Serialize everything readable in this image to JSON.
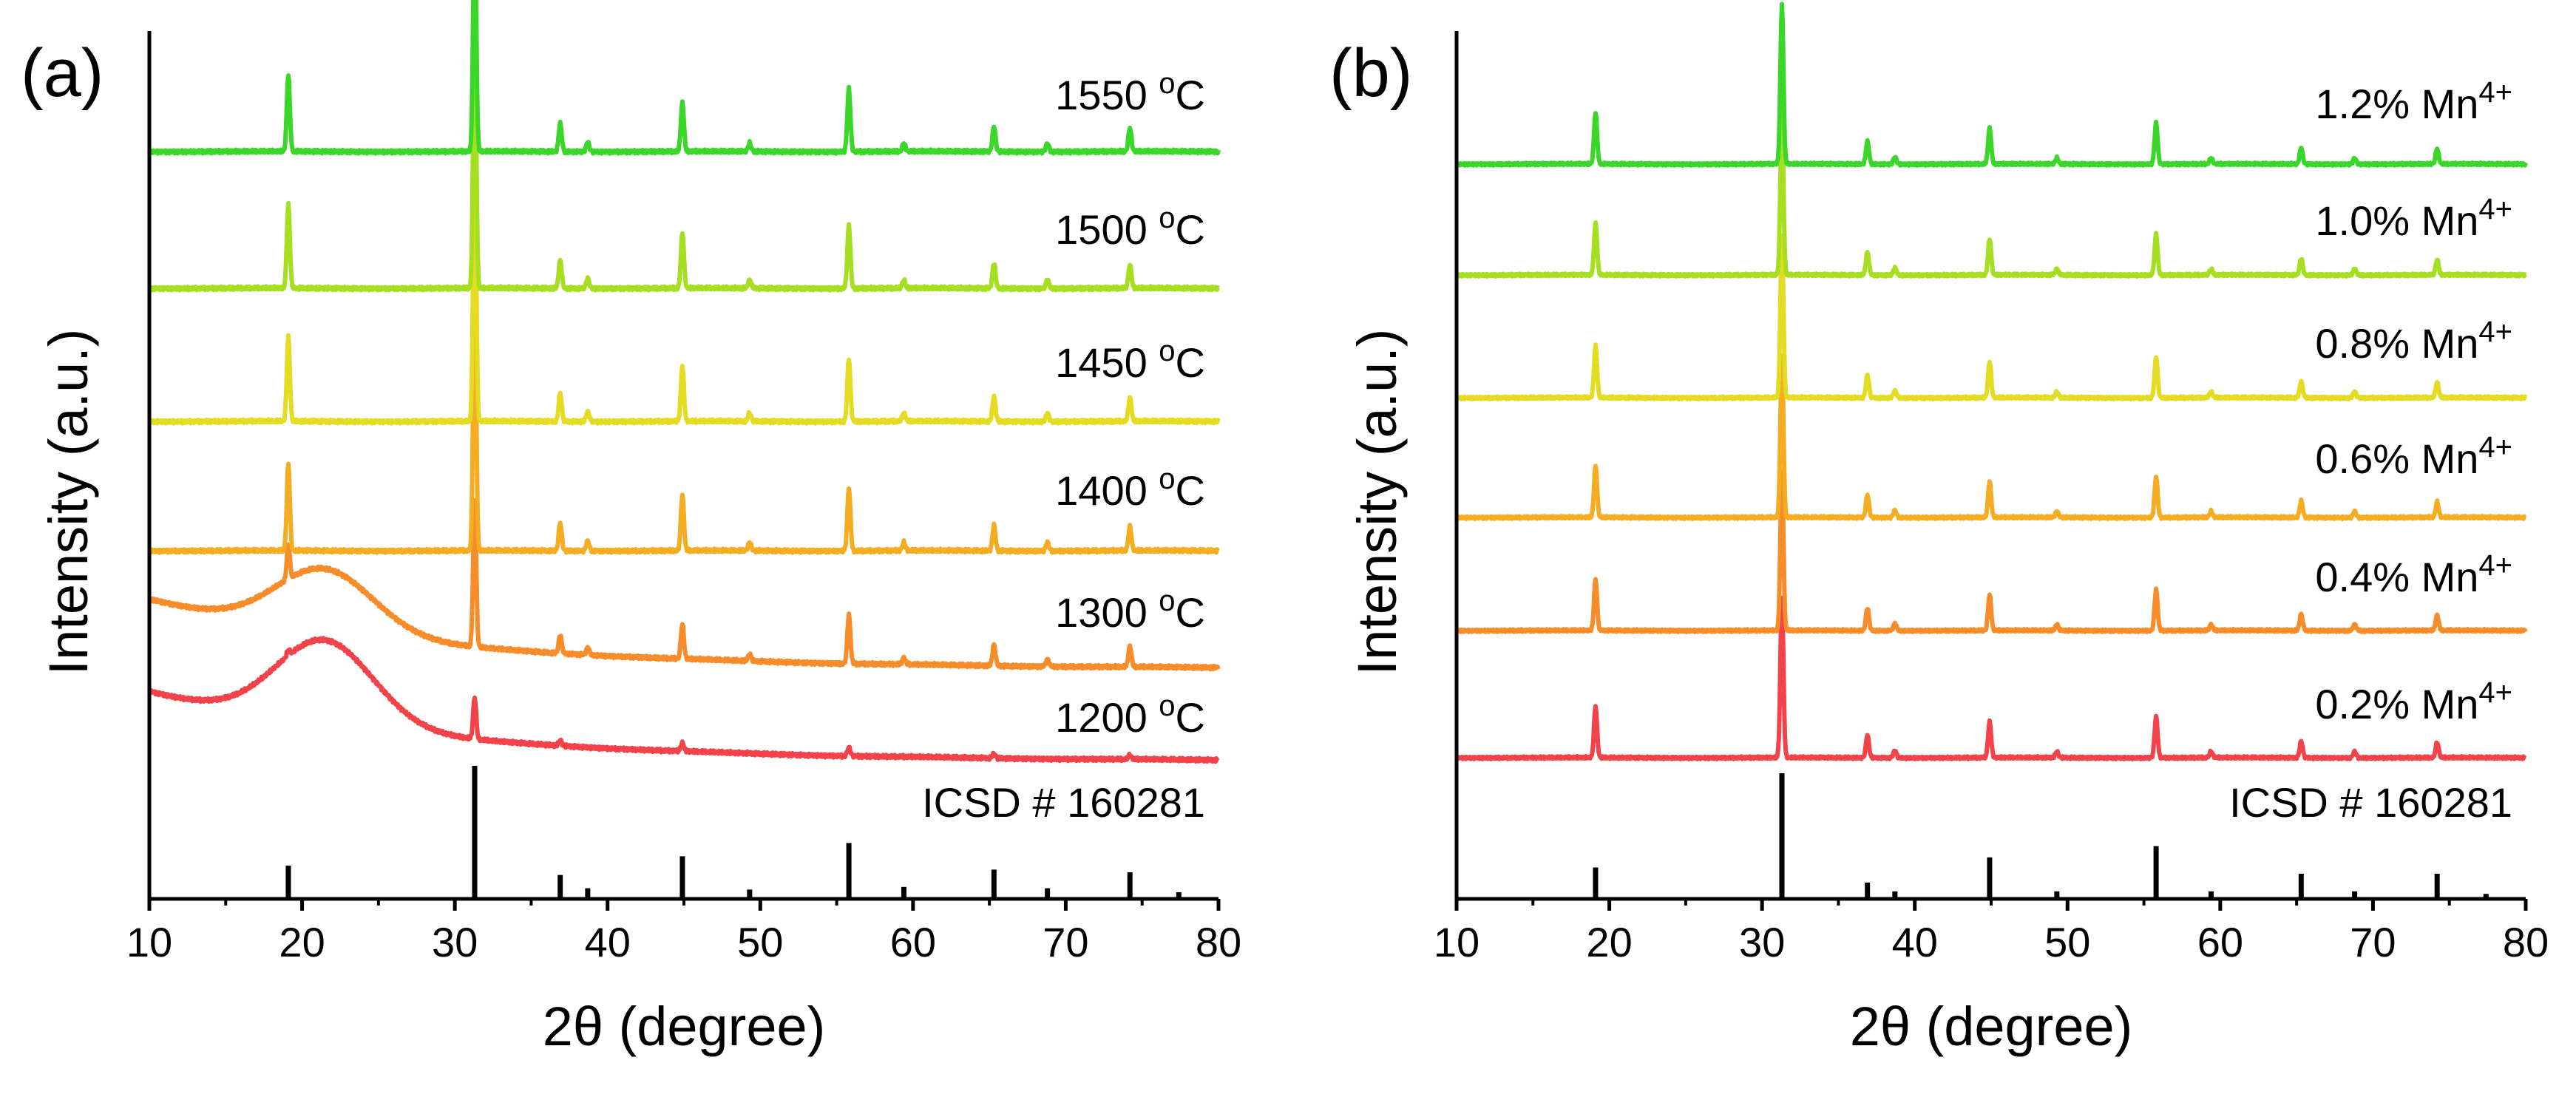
{
  "chart_data": [
    {
      "type": "line",
      "panel_label": "(a)",
      "xlabel": "2θ (degree)",
      "ylabel": "Intensity (a.u.)",
      "xlim": [
        10,
        80
      ],
      "x_ticks": [
        10,
        20,
        30,
        40,
        50,
        60,
        70,
        80
      ],
      "y_ticks": [],
      "grid": false,
      "reference": {
        "label": "ICSD # 160281",
        "sticks": [
          [
            19.1,
            0.25
          ],
          [
            31.3,
            1.0
          ],
          [
            36.9,
            0.18
          ],
          [
            38.7,
            0.08
          ],
          [
            44.9,
            0.32
          ],
          [
            49.3,
            0.07
          ],
          [
            55.8,
            0.42
          ],
          [
            59.4,
            0.09
          ],
          [
            65.3,
            0.22
          ],
          [
            68.8,
            0.08
          ],
          [
            74.2,
            0.2
          ],
          [
            77.4,
            0.05
          ]
        ]
      },
      "series": [
        {
          "name": "1200 °C",
          "color": "#f2424a",
          "baseline": 0.94,
          "peaks": [
            [
              19.1,
              0.04
            ],
            [
              31.3,
              0.3
            ],
            [
              36.9,
              0.04
            ],
            [
              44.9,
              0.06
            ],
            [
              55.8,
              0.06
            ],
            [
              65.3,
              0.03
            ],
            [
              74.2,
              0.03
            ]
          ],
          "hump": {
            "center": 21.5,
            "height": 0.6,
            "width": 4.5
          },
          "background": {
            "start": 0.5,
            "decay": 18
          }
        },
        {
          "name": "1300 °C",
          "color": "#f78c2a",
          "baseline": 0.94,
          "peaks": [
            [
              19.1,
              0.25
            ],
            [
              31.3,
              1.05
            ],
            [
              36.9,
              0.13
            ],
            [
              38.7,
              0.05
            ],
            [
              44.9,
              0.25
            ],
            [
              49.3,
              0.05
            ],
            [
              55.8,
              0.35
            ],
            [
              59.4,
              0.05
            ],
            [
              65.3,
              0.15
            ],
            [
              68.8,
              0.05
            ],
            [
              74.2,
              0.15
            ]
          ],
          "hump": {
            "center": 21.5,
            "height": 0.45,
            "width": 4.5
          },
          "background": {
            "start": 0.5,
            "decay": 18
          }
        },
        {
          "name": "1400 °C",
          "color": "#f4ac22",
          "baseline": 0.94,
          "peaks": [
            [
              19.1,
              0.62
            ],
            [
              31.3,
              1.9
            ],
            [
              36.9,
              0.2
            ],
            [
              38.7,
              0.07
            ],
            [
              44.9,
              0.4
            ],
            [
              49.3,
              0.06
            ],
            [
              55.8,
              0.45
            ],
            [
              59.4,
              0.06
            ],
            [
              65.3,
              0.18
            ],
            [
              68.8,
              0.06
            ],
            [
              74.2,
              0.17
            ]
          ]
        },
        {
          "name": "1450 °C",
          "color": "#e3dc22",
          "baseline": 0.94,
          "peaks": [
            [
              19.1,
              0.6
            ],
            [
              31.3,
              1.95
            ],
            [
              36.9,
              0.2
            ],
            [
              38.7,
              0.07
            ],
            [
              44.9,
              0.4
            ],
            [
              49.3,
              0.06
            ],
            [
              55.8,
              0.45
            ],
            [
              59.4,
              0.06
            ],
            [
              65.3,
              0.18
            ],
            [
              68.8,
              0.06
            ],
            [
              74.2,
              0.17
            ]
          ]
        },
        {
          "name": "1500 °C",
          "color": "#a6de22",
          "baseline": 0.94,
          "peaks": [
            [
              19.1,
              0.6
            ],
            [
              31.3,
              1.95
            ],
            [
              36.9,
              0.2
            ],
            [
              38.7,
              0.07
            ],
            [
              44.9,
              0.4
            ],
            [
              49.3,
              0.06
            ],
            [
              55.8,
              0.45
            ],
            [
              59.4,
              0.06
            ],
            [
              65.3,
              0.18
            ],
            [
              68.8,
              0.06
            ],
            [
              74.2,
              0.17
            ]
          ]
        },
        {
          "name": "1550 °C",
          "color": "#3ad62a",
          "baseline": 0.94,
          "peaks": [
            [
              19.1,
              0.55
            ],
            [
              31.3,
              1.7
            ],
            [
              36.9,
              0.2
            ],
            [
              38.7,
              0.07
            ],
            [
              44.9,
              0.35
            ],
            [
              49.3,
              0.06
            ],
            [
              55.8,
              0.45
            ],
            [
              59.4,
              0.06
            ],
            [
              65.3,
              0.18
            ],
            [
              68.8,
              0.06
            ],
            [
              74.2,
              0.17
            ]
          ]
        }
      ]
    },
    {
      "type": "line",
      "panel_label": "(b)",
      "xlabel": "2θ (degree)",
      "ylabel": "Intensity (a.u.)",
      "xlim": [
        10,
        80
      ],
      "x_ticks": [
        10,
        20,
        30,
        40,
        50,
        60,
        70,
        80
      ],
      "y_ticks": [],
      "grid": false,
      "reference": {
        "label": "ICSD # 160281",
        "sticks": [
          [
            19.1,
            0.25
          ],
          [
            31.3,
            1.0
          ],
          [
            36.9,
            0.13
          ],
          [
            38.7,
            0.06
          ],
          [
            44.9,
            0.33
          ],
          [
            49.3,
            0.06
          ],
          [
            55.8,
            0.42
          ],
          [
            59.4,
            0.06
          ],
          [
            65.3,
            0.2
          ],
          [
            68.8,
            0.06
          ],
          [
            74.2,
            0.2
          ],
          [
            77.4,
            0.04
          ]
        ]
      },
      "series": [
        {
          "name": "0.2% Mn",
          "sup": "4+",
          "color": "#f2424a",
          "baseline": 0.94,
          "peaks": [
            [
              19.1,
              0.5
            ],
            [
              31.3,
              1.55
            ],
            [
              36.9,
              0.22
            ],
            [
              38.7,
              0.07
            ],
            [
              44.9,
              0.35
            ],
            [
              49.3,
              0.06
            ],
            [
              55.8,
              0.4
            ],
            [
              59.4,
              0.06
            ],
            [
              65.3,
              0.16
            ],
            [
              68.8,
              0.06
            ],
            [
              74.2,
              0.15
            ]
          ]
        },
        {
          "name": "0.4% Mn",
          "sup": "4+",
          "color": "#f78c2a",
          "baseline": 0.94,
          "peaks": [
            [
              19.1,
              0.5
            ],
            [
              31.3,
              1.55
            ],
            [
              36.9,
              0.22
            ],
            [
              38.7,
              0.07
            ],
            [
              44.9,
              0.35
            ],
            [
              49.3,
              0.06
            ],
            [
              55.8,
              0.4
            ],
            [
              59.4,
              0.06
            ],
            [
              65.3,
              0.16
            ],
            [
              68.8,
              0.06
            ],
            [
              74.2,
              0.15
            ]
          ]
        },
        {
          "name": "0.6% Mn",
          "sup": "4+",
          "color": "#f4ac22",
          "baseline": 0.94,
          "peaks": [
            [
              19.1,
              0.5
            ],
            [
              31.3,
              1.55
            ],
            [
              36.9,
              0.22
            ],
            [
              38.7,
              0.07
            ],
            [
              44.9,
              0.35
            ],
            [
              49.3,
              0.06
            ],
            [
              55.8,
              0.4
            ],
            [
              59.4,
              0.06
            ],
            [
              65.3,
              0.16
            ],
            [
              68.8,
              0.06
            ],
            [
              74.2,
              0.15
            ]
          ]
        },
        {
          "name": "0.8% Mn",
          "sup": "4+",
          "color": "#e3dc22",
          "baseline": 0.94,
          "peaks": [
            [
              19.1,
              0.5
            ],
            [
              31.3,
              1.55
            ],
            [
              36.9,
              0.22
            ],
            [
              38.7,
              0.07
            ],
            [
              44.9,
              0.35
            ],
            [
              49.3,
              0.06
            ],
            [
              55.8,
              0.4
            ],
            [
              59.4,
              0.06
            ],
            [
              65.3,
              0.16
            ],
            [
              68.8,
              0.06
            ],
            [
              74.2,
              0.15
            ]
          ]
        },
        {
          "name": "1.0% Mn",
          "sup": "4+",
          "color": "#a6de22",
          "baseline": 0.94,
          "peaks": [
            [
              19.1,
              0.5
            ],
            [
              31.3,
              1.55
            ],
            [
              36.9,
              0.22
            ],
            [
              38.7,
              0.07
            ],
            [
              44.9,
              0.35
            ],
            [
              49.3,
              0.06
            ],
            [
              55.8,
              0.4
            ],
            [
              59.4,
              0.06
            ],
            [
              65.3,
              0.16
            ],
            [
              68.8,
              0.06
            ],
            [
              74.2,
              0.15
            ]
          ]
        },
        {
          "name": "1.2% Mn",
          "sup": "4+",
          "color": "#3ad62a",
          "baseline": 0.94,
          "peaks": [
            [
              19.1,
              0.5
            ],
            [
              31.3,
              1.55
            ],
            [
              36.9,
              0.22
            ],
            [
              38.7,
              0.07
            ],
            [
              44.9,
              0.35
            ],
            [
              49.3,
              0.06
            ],
            [
              55.8,
              0.4
            ],
            [
              59.4,
              0.06
            ],
            [
              65.3,
              0.16
            ],
            [
              68.8,
              0.06
            ],
            [
              74.2,
              0.15
            ]
          ]
        }
      ]
    }
  ]
}
